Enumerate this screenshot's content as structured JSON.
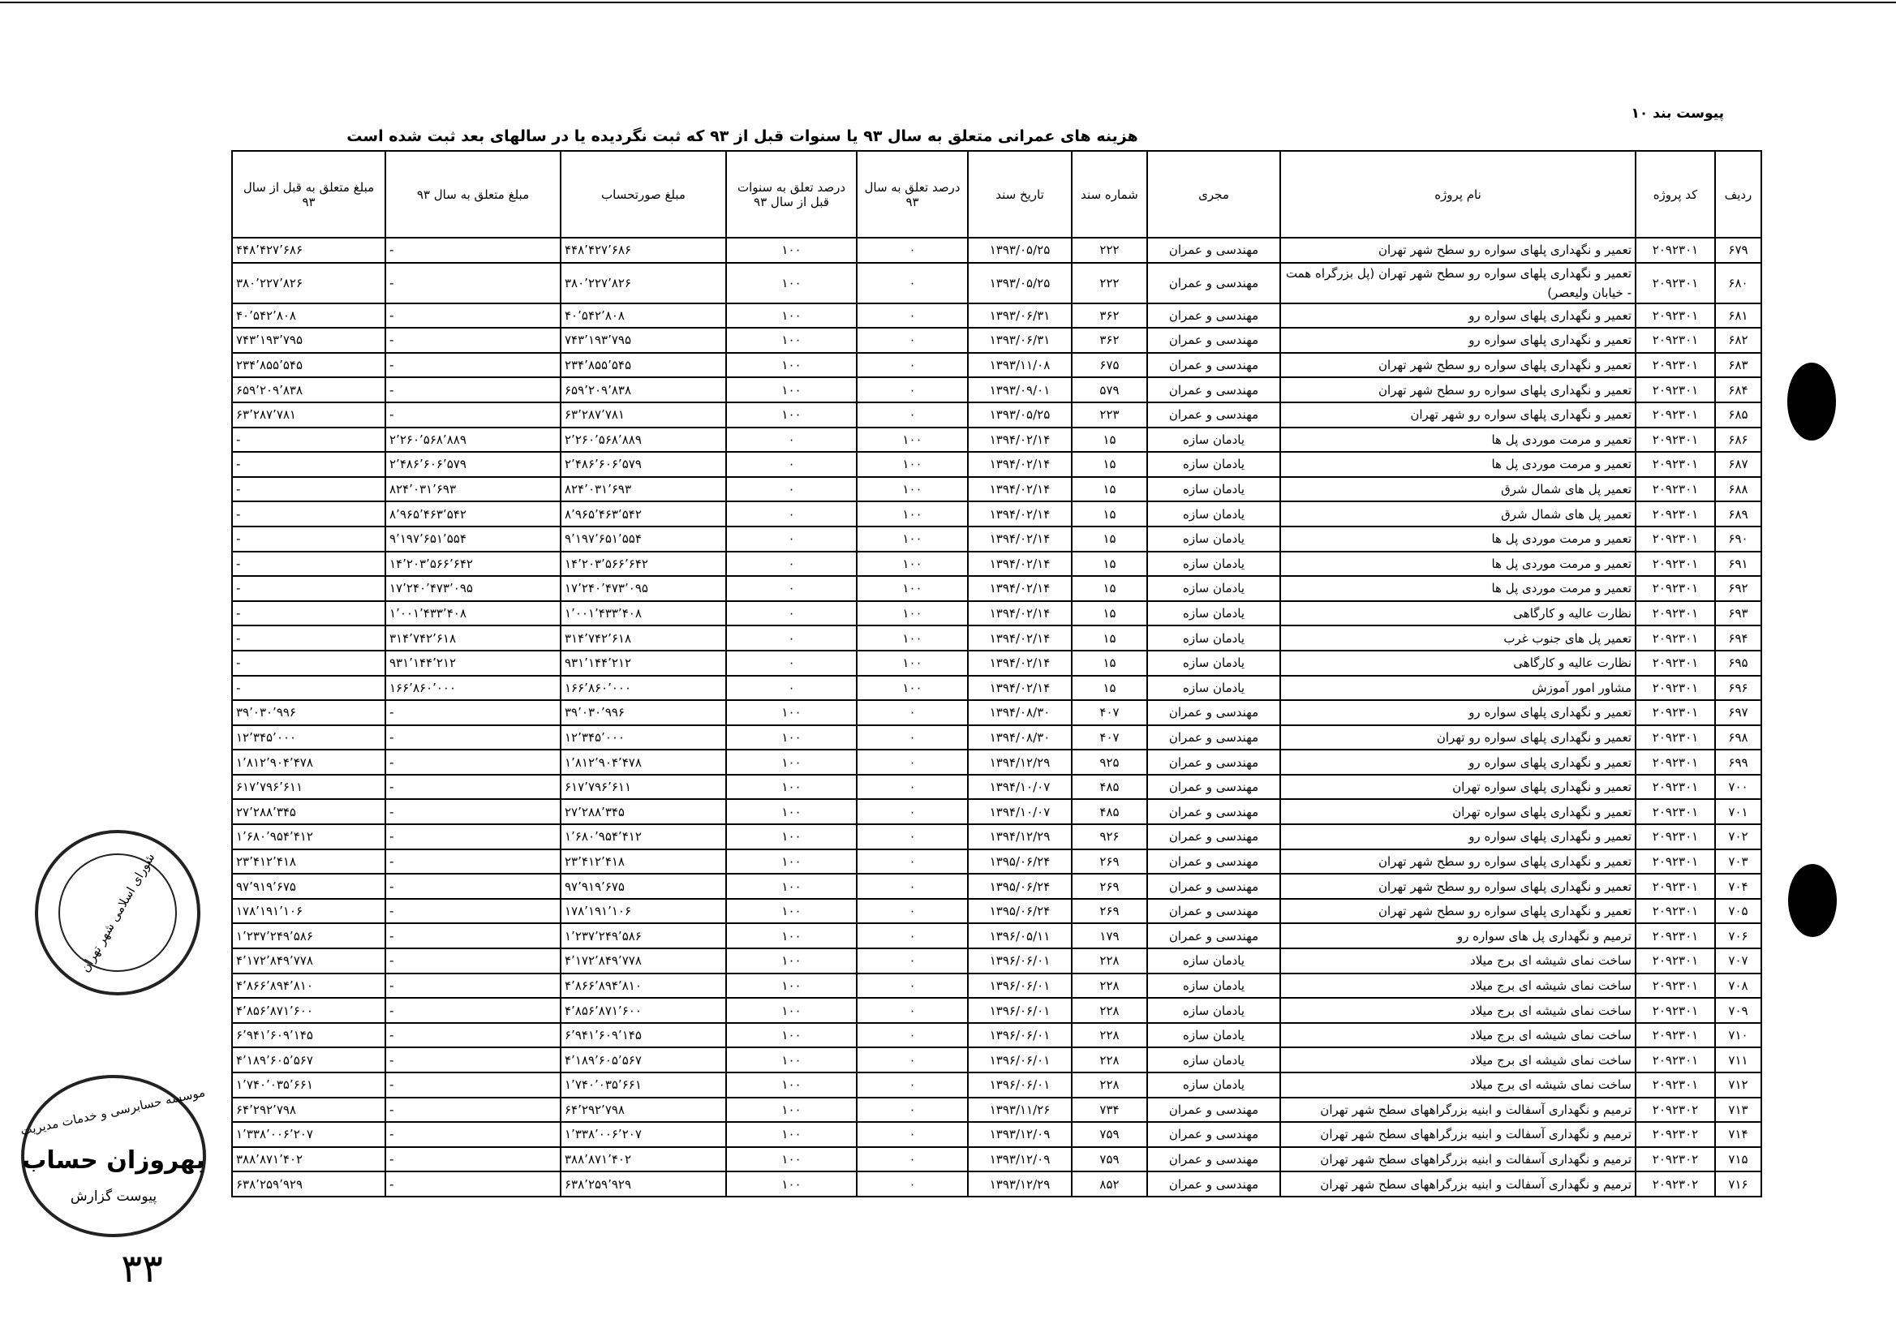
{
  "header": {
    "attachment": "پیوست بند ۱۰",
    "title": "هزینه های عمرانی متعلق به سال ۹۳ یا سنوات قبل از ۹۳ که ثبت نگردیده یا در سالهای بعد ثبت شده است"
  },
  "table": {
    "columns": [
      "ردیف",
      "کد پروژه",
      "نام پروژه",
      "مجری",
      "شماره سند",
      "تاریخ سند",
      "درصد تعلق به سال ۹۳",
      "درصد تعلق به سنوات قبل از سال ۹۳",
      "مبلغ صورتحساب",
      "مبلغ متعلق به سال ۹۳",
      "مبلغ متعلق به قبل از سال ۹۳"
    ],
    "rows": [
      [
        "۶۷۹",
        "۲۰۹۲۳۰۱",
        "تعمیر و نگهداری پلهای سواره رو سطح شهر تهران",
        "مهندسی و عمران",
        "۲۲۲",
        "۱۳۹۳/۰۵/۲۵",
        "۰",
        "۱۰۰",
        "۴۴۸٬۴۲۷٬۶۸۶",
        "-",
        "۴۴۸٬۴۲۷٬۶۸۶"
      ],
      [
        "۶۸۰",
        "۲۰۹۲۳۰۱",
        "تعمیر و نگهداری پلهای سواره رو سطح شهر تهران (پل بزرگراه همت - خیابان ولیعصر)",
        "مهندسی و عمران",
        "۲۲۲",
        "۱۳۹۳/۰۵/۲۵",
        "۰",
        "۱۰۰",
        "۳۸۰٬۲۲۷٬۸۲۶",
        "-",
        "۳۸۰٬۲۲۷٬۸۲۶"
      ],
      [
        "۶۸۱",
        "۲۰۹۲۳۰۱",
        "تعمیر و نگهداری پلهای سواره رو",
        "مهندسی و عمران",
        "۳۶۲",
        "۱۳۹۳/۰۶/۳۱",
        "۰",
        "۱۰۰",
        "۴۰٬۵۴۲٬۸۰۸",
        "-",
        "۴۰٬۵۴۲٬۸۰۸"
      ],
      [
        "۶۸۲",
        "۲۰۹۲۳۰۱",
        "تعمیر و نگهداری پلهای سواره رو",
        "مهندسی و عمران",
        "۳۶۲",
        "۱۳۹۳/۰۶/۳۱",
        "۰",
        "۱۰۰",
        "۷۴۳٬۱۹۳٬۷۹۵",
        "-",
        "۷۴۳٬۱۹۳٬۷۹۵"
      ],
      [
        "۶۸۳",
        "۲۰۹۲۳۰۱",
        "تعمیر و نگهداری پلهای سواره رو سطح شهر تهران",
        "مهندسی و عمران",
        "۶۷۵",
        "۱۳۹۳/۱۱/۰۸",
        "۰",
        "۱۰۰",
        "۲۳۴٬۸۵۵٬۵۴۵",
        "-",
        "۲۳۴٬۸۵۵٬۵۴۵"
      ],
      [
        "۶۸۴",
        "۲۰۹۲۳۰۱",
        "تعمیر و نگهداری پلهای سواره رو سطح شهر تهران",
        "مهندسی و عمران",
        "۵۷۹",
        "۱۳۹۳/۰۹/۰۱",
        "۰",
        "۱۰۰",
        "۶۵۹٬۲۰۹٬۸۳۸",
        "-",
        "۶۵۹٬۲۰۹٬۸۳۸"
      ],
      [
        "۶۸۵",
        "۲۰۹۲۳۰۱",
        "تعمیر و نگهداری پلهای سواره رو شهر تهران",
        "مهندسی و عمران",
        "۲۲۳",
        "۱۳۹۳/۰۵/۲۵",
        "۰",
        "۱۰۰",
        "۶۳٬۲۸۷٬۷۸۱",
        "-",
        "۶۳٬۲۸۷٬۷۸۱"
      ],
      [
        "۶۸۶",
        "۲۰۹۲۳۰۱",
        "تعمیر و مرمت موردی پل ها",
        "یادمان سازه",
        "۱۵",
        "۱۳۹۴/۰۲/۱۴",
        "۱۰۰",
        "۰",
        "۲٬۲۶۰٬۵۶۸٬۸۸۹",
        "۲٬۲۶۰٬۵۶۸٬۸۸۹",
        "-"
      ],
      [
        "۶۸۷",
        "۲۰۹۲۳۰۱",
        "تعمیر و مرمت موردی پل ها",
        "یادمان سازه",
        "۱۵",
        "۱۳۹۴/۰۲/۱۴",
        "۱۰۰",
        "۰",
        "۲٬۴۸۶٬۶۰۶٬۵۷۹",
        "۲٬۴۸۶٬۶۰۶٬۵۷۹",
        "-"
      ],
      [
        "۶۸۸",
        "۲۰۹۲۳۰۱",
        "تعمیر پل های شمال شرق",
        "یادمان سازه",
        "۱۵",
        "۱۳۹۴/۰۲/۱۴",
        "۱۰۰",
        "۰",
        "۸۲۴٬۰۳۱٬۶۹۳",
        "۸۲۴٬۰۳۱٬۶۹۳",
        "-"
      ],
      [
        "۶۸۹",
        "۲۰۹۲۳۰۱",
        "تعمیر پل های شمال شرق",
        "یادمان سازه",
        "۱۵",
        "۱۳۹۴/۰۲/۱۴",
        "۱۰۰",
        "۰",
        "۸٬۹۶۵٬۴۶۳٬۵۴۲",
        "۸٬۹۶۵٬۴۶۳٬۵۴۲",
        "-"
      ],
      [
        "۶۹۰",
        "۲۰۹۲۳۰۱",
        "تعمیر و مرمت موردی پل ها",
        "یادمان سازه",
        "۱۵",
        "۱۳۹۴/۰۲/۱۴",
        "۱۰۰",
        "۰",
        "۹٬۱۹۷٬۶۵۱٬۵۵۴",
        "۹٬۱۹۷٬۶۵۱٬۵۵۴",
        "-"
      ],
      [
        "۶۹۱",
        "۲۰۹۲۳۰۱",
        "تعمیر و مرمت موردی پل ها",
        "یادمان سازه",
        "۱۵",
        "۱۳۹۴/۰۲/۱۴",
        "۱۰۰",
        "۰",
        "۱۴٬۲۰۳٬۵۶۶٬۶۴۲",
        "۱۴٬۲۰۳٬۵۶۶٬۶۴۲",
        "-"
      ],
      [
        "۶۹۲",
        "۲۰۹۲۳۰۱",
        "تعمیر و مرمت موردی پل ها",
        "یادمان سازه",
        "۱۵",
        "۱۳۹۴/۰۲/۱۴",
        "۱۰۰",
        "۰",
        "۱۷٬۲۴۰٬۴۷۳٬۰۹۵",
        "۱۷٬۲۴۰٬۴۷۳٬۰۹۵",
        "-"
      ],
      [
        "۶۹۳",
        "۲۰۹۲۳۰۱",
        "نظارت عالیه و کارگاهی",
        "یادمان سازه",
        "۱۵",
        "۱۳۹۴/۰۲/۱۴",
        "۱۰۰",
        "۰",
        "۱٬۰۰۱٬۴۳۳٬۴۰۸",
        "۱٬۰۰۱٬۴۳۳٬۴۰۸",
        "-"
      ],
      [
        "۶۹۴",
        "۲۰۹۲۳۰۱",
        "تعمیر پل های جنوب غرب",
        "یادمان سازه",
        "۱۵",
        "۱۳۹۴/۰۲/۱۴",
        "۱۰۰",
        "۰",
        "۳۱۴٬۷۴۲٬۶۱۸",
        "۳۱۴٬۷۴۲٬۶۱۸",
        "-"
      ],
      [
        "۶۹۵",
        "۲۰۹۲۳۰۱",
        "نظارت عالیه و کارگاهی",
        "یادمان سازه",
        "۱۵",
        "۱۳۹۴/۰۲/۱۴",
        "۱۰۰",
        "۰",
        "۹۳۱٬۱۴۴٬۲۱۲",
        "۹۳۱٬۱۴۴٬۲۱۲",
        "-"
      ],
      [
        "۶۹۶",
        "۲۰۹۲۳۰۱",
        "مشاور امور آموزش",
        "یادمان سازه",
        "۱۵",
        "۱۳۹۴/۰۲/۱۴",
        "۱۰۰",
        "۰",
        "۱۶۶٬۸۶۰٬۰۰۰",
        "۱۶۶٬۸۶۰٬۰۰۰",
        "-"
      ],
      [
        "۶۹۷",
        "۲۰۹۲۳۰۱",
        "تعمیر و نگهداری پلهای سواره رو",
        "مهندسی و عمران",
        "۴۰۷",
        "۱۳۹۴/۰۸/۳۰",
        "۰",
        "۱۰۰",
        "۳۹٬۰۳۰٬۹۹۶",
        "-",
        "۳۹٬۰۳۰٬۹۹۶"
      ],
      [
        "۶۹۸",
        "۲۰۹۲۳۰۱",
        "تعمیر و نگهداری پلهای سواره رو تهران",
        "مهندسی و عمران",
        "۴۰۷",
        "۱۳۹۴/۰۸/۳۰",
        "۰",
        "۱۰۰",
        "۱۲٬۳۴۵٬۰۰۰",
        "-",
        "۱۲٬۳۴۵٬۰۰۰"
      ],
      [
        "۶۹۹",
        "۲۰۹۲۳۰۱",
        "تعمیر و نگهداری پلهای سواره رو",
        "مهندسی و عمران",
        "۹۲۵",
        "۱۳۹۴/۱۲/۲۹",
        "۰",
        "۱۰۰",
        "۱٬۸۱۲٬۹۰۴٬۴۷۸",
        "-",
        "۱٬۸۱۲٬۹۰۴٬۴۷۸"
      ],
      [
        "۷۰۰",
        "۲۰۹۲۳۰۱",
        "تعمیر و نگهداری پلهای سواره تهران",
        "مهندسی و عمران",
        "۴۸۵",
        "۱۳۹۴/۱۰/۰۷",
        "۰",
        "۱۰۰",
        "۶۱۷٬۷۹۶٬۶۱۱",
        "-",
        "۶۱۷٬۷۹۶٬۶۱۱"
      ],
      [
        "۷۰۱",
        "۲۰۹۲۳۰۱",
        "تعمیر و نگهداری پلهای سواره تهران",
        "مهندسی و عمران",
        "۴۸۵",
        "۱۳۹۴/۱۰/۰۷",
        "۰",
        "۱۰۰",
        "۲۷٬۲۸۸٬۳۴۵",
        "-",
        "۲۷٬۲۸۸٬۳۴۵"
      ],
      [
        "۷۰۲",
        "۲۰۹۲۳۰۱",
        "تعمیر و نگهداری پلهای سواره رو",
        "مهندسی و عمران",
        "۹۲۶",
        "۱۳۹۴/۱۲/۲۹",
        "۰",
        "۱۰۰",
        "۱٬۶۸۰٬۹۵۴٬۴۱۲",
        "-",
        "۱٬۶۸۰٬۹۵۴٬۴۱۲"
      ],
      [
        "۷۰۳",
        "۲۰۹۲۳۰۱",
        "تعمیر و نگهداری پلهای سواره رو سطح شهر تهران",
        "مهندسی و عمران",
        "۲۶۹",
        "۱۳۹۵/۰۶/۲۴",
        "۰",
        "۱۰۰",
        "۲۳٬۴۱۲٬۴۱۸",
        "-",
        "۲۳٬۴۱۲٬۴۱۸"
      ],
      [
        "۷۰۴",
        "۲۰۹۲۳۰۱",
        "تعمیر و نگهداری پلهای سواره رو سطح شهر تهران",
        "مهندسی و عمران",
        "۲۶۹",
        "۱۳۹۵/۰۶/۲۴",
        "۰",
        "۱۰۰",
        "۹۷٬۹۱۹٬۶۷۵",
        "-",
        "۹۷٬۹۱۹٬۶۷۵"
      ],
      [
        "۷۰۵",
        "۲۰۹۲۳۰۱",
        "تعمیر و نگهداری پلهای سواره رو سطح شهر تهران",
        "مهندسی و عمران",
        "۲۶۹",
        "۱۳۹۵/۰۶/۲۴",
        "۰",
        "۱۰۰",
        "۱۷۸٬۱۹۱٬۱۰۶",
        "-",
        "۱۷۸٬۱۹۱٬۱۰۶"
      ],
      [
        "۷۰۶",
        "۲۰۹۲۳۰۱",
        "ترمیم و نگهداری پل های سواره رو",
        "مهندسی و عمران",
        "۱۷۹",
        "۱۳۹۶/۰۵/۱۱",
        "۰",
        "۱۰۰",
        "۱٬۲۳۷٬۲۴۹٬۵۸۶",
        "-",
        "۱٬۲۳۷٬۲۴۹٬۵۸۶"
      ],
      [
        "۷۰۷",
        "۲۰۹۲۳۰۱",
        "ساخت نمای شیشه ای برج میلاد",
        "یادمان سازه",
        "۲۲۸",
        "۱۳۹۶/۰۶/۰۱",
        "۰",
        "۱۰۰",
        "۴٬۱۷۲٬۸۴۹٬۷۷۸",
        "-",
        "۴٬۱۷۲٬۸۴۹٬۷۷۸"
      ],
      [
        "۷۰۸",
        "۲۰۹۲۳۰۱",
        "ساخت نمای شیشه ای برج میلاد",
        "یادمان سازه",
        "۲۲۸",
        "۱۳۹۶/۰۶/۰۱",
        "۰",
        "۱۰۰",
        "۴٬۸۶۶٬۸۹۴٬۸۱۰",
        "-",
        "۴٬۸۶۶٬۸۹۴٬۸۱۰"
      ],
      [
        "۷۰۹",
        "۲۰۹۲۳۰۱",
        "ساخت نمای شیشه ای برج میلاد",
        "یادمان سازه",
        "۲۲۸",
        "۱۳۹۶/۰۶/۰۱",
        "۰",
        "۱۰۰",
        "۴٬۸۵۶٬۸۷۱٬۶۰۰",
        "-",
        "۴٬۸۵۶٬۸۷۱٬۶۰۰"
      ],
      [
        "۷۱۰",
        "۲۰۹۲۳۰۱",
        "ساخت نمای شیشه ای برج میلاد",
        "یادمان سازه",
        "۲۲۸",
        "۱۳۹۶/۰۶/۰۱",
        "۰",
        "۱۰۰",
        "۶٬۹۴۱٬۶۰۹٬۱۴۵",
        "-",
        "۶٬۹۴۱٬۶۰۹٬۱۴۵"
      ],
      [
        "۷۱۱",
        "۲۰۹۲۳۰۱",
        "ساخت نمای شیشه ای برج میلاد",
        "یادمان سازه",
        "۲۲۸",
        "۱۳۹۶/۰۶/۰۱",
        "۰",
        "۱۰۰",
        "۴٬۱۸۹٬۶۰۵٬۵۶۷",
        "-",
        "۴٬۱۸۹٬۶۰۵٬۵۶۷"
      ],
      [
        "۷۱۲",
        "۲۰۹۲۳۰۱",
        "ساخت نمای شیشه ای برج میلاد",
        "یادمان سازه",
        "۲۲۸",
        "۱۳۹۶/۰۶/۰۱",
        "۰",
        "۱۰۰",
        "۱٬۷۴۰٬۰۳۵٬۶۶۱",
        "-",
        "۱٬۷۴۰٬۰۳۵٬۶۶۱"
      ],
      [
        "۷۱۳",
        "۲۰۹۲۳۰۲",
        "ترمیم و نگهداری آسفالت و ابنیه بزرگراههای سطح شهر تهران",
        "مهندسی و عمران",
        "۷۳۴",
        "۱۳۹۳/۱۱/۲۶",
        "۰",
        "۱۰۰",
        "۶۴٬۲۹۲٬۷۹۸",
        "-",
        "۶۴٬۲۹۲٬۷۹۸"
      ],
      [
        "۷۱۴",
        "۲۰۹۲۳۰۲",
        "ترمیم و نگهداری آسفالت و ابنیه بزرگراههای سطح شهر تهران",
        "مهندسی و عمران",
        "۷۵۹",
        "۱۳۹۳/۱۲/۰۹",
        "۰",
        "۱۰۰",
        "۱٬۳۳۸٬۰۰۶٬۲۰۷",
        "-",
        "۱٬۳۳۸٬۰۰۶٬۲۰۷"
      ],
      [
        "۷۱۵",
        "۲۰۹۲۳۰۲",
        "ترمیم و نگهداری آسفالت و ابنیه بزرگراههای سطح شهر تهران",
        "مهندسی و عمران",
        "۷۵۹",
        "۱۳۹۳/۱۲/۰۹",
        "۰",
        "۱۰۰",
        "۳۸۸٬۸۷۱٬۴۰۲",
        "-",
        "۳۸۸٬۸۷۱٬۴۰۲"
      ],
      [
        "۷۱۶",
        "۲۰۹۲۳۰۲",
        "ترمیم و نگهداری آسفالت و ابنیه بزرگراههای سطح شهر تهران",
        "مهندسی و عمران",
        "۸۵۲",
        "۱۳۹۳/۱۲/۲۹",
        "۰",
        "۱۰۰",
        "۶۳۸٬۲۵۹٬۹۲۹",
        "-",
        "۶۳۸٬۲۵۹٬۹۲۹"
      ]
    ]
  },
  "stamps": {
    "council": "شورای اسلامی شهر تهران",
    "audit_top": "موسسه حسابرسی و خدمات مدیریت",
    "audit_name": "بهروزان حساب",
    "audit_bottom": "پیوست گزارش",
    "page_number": "۳۳"
  }
}
